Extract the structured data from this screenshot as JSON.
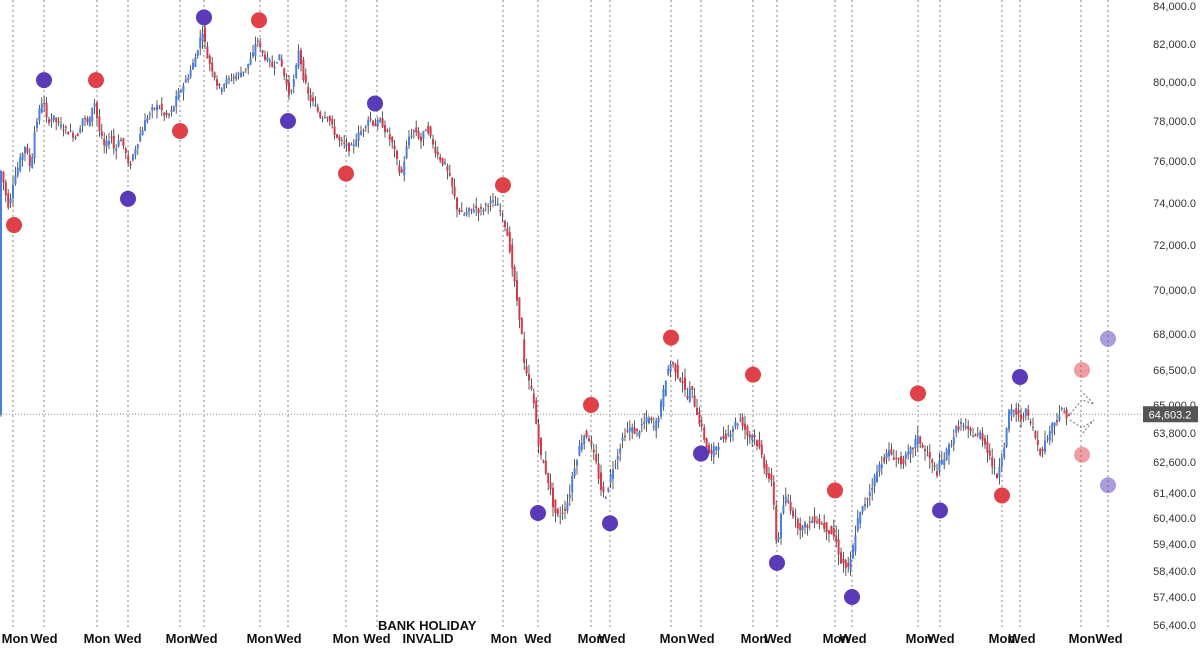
{
  "chart_data": {
    "type": "candlestick",
    "y_axis": {
      "position": "right",
      "ylim": [
        56400,
        84000
      ],
      "ticks": [
        84000,
        82000,
        80000,
        78000,
        76000,
        74000,
        72000,
        70000,
        68000,
        66500,
        65000,
        63800,
        62600,
        61400,
        60400,
        59400,
        58400,
        57400,
        56400
      ],
      "tick_labels": [
        "84,000.0",
        "82,000.0",
        "80,000.0",
        "78,000.0",
        "76,000.0",
        "74,000.0",
        "72,000.0",
        "70,000.0",
        "68,000.0",
        "66,500.0",
        "65,000.0",
        "63,800.0",
        "62,600.0",
        "61,400.0",
        "60,400.0",
        "59,400.0",
        "58,400.0",
        "57,400.0",
        "56,400.0"
      ]
    },
    "x_axis": {
      "labels": [
        "Mon",
        "Wed",
        "Mon",
        "Wed",
        "Mon",
        "Wed",
        "Mon",
        "Wed",
        "Mon",
        "Wed",
        "INVALID",
        "Mon",
        "Wed",
        "Mon",
        "Wed",
        "Mon",
        "Wed",
        "Mon",
        "Wed",
        "Mon",
        "Wed",
        "Mon",
        "Wed",
        "Mon",
        "Wed",
        "Mon",
        "Wed"
      ],
      "day_separators": true
    },
    "annotation": "BANK HOLIDAY",
    "current_price": 64603.2,
    "current_price_label": "64,603.2",
    "colors": {
      "up": "#4a7fe0",
      "down": "#d23c4a",
      "swing_high": "#e04048",
      "swing_low": "#5a3ab8"
    },
    "price_path": [
      [
        0,
        75800
      ],
      [
        3,
        75400
      ],
      [
        6,
        74600
      ],
      [
        10,
        73800
      ],
      [
        14,
        75000
      ],
      [
        20,
        75800
      ],
      [
        26,
        76800
      ],
      [
        32,
        75600
      ],
      [
        36,
        77600
      ],
      [
        40,
        78400
      ],
      [
        44,
        79200
      ],
      [
        48,
        78000
      ],
      [
        54,
        78200
      ],
      [
        60,
        77800
      ],
      [
        66,
        77600
      ],
      [
        72,
        77400
      ],
      [
        78,
        77200
      ],
      [
        84,
        78200
      ],
      [
        90,
        77800
      ],
      [
        95,
        79200
      ],
      [
        100,
        77600
      ],
      [
        106,
        76600
      ],
      [
        112,
        77400
      ],
      [
        116,
        76400
      ],
      [
        120,
        77200
      ],
      [
        126,
        76600
      ],
      [
        130,
        75600
      ],
      [
        136,
        76600
      ],
      [
        142,
        77400
      ],
      [
        148,
        78200
      ],
      [
        154,
        78600
      ],
      [
        160,
        78800
      ],
      [
        166,
        78200
      ],
      [
        172,
        78400
      ],
      [
        178,
        79200
      ],
      [
        184,
        79800
      ],
      [
        190,
        80400
      ],
      [
        196,
        81200
      ],
      [
        201,
        82200
      ],
      [
        204,
        82800
      ],
      [
        208,
        81400
      ],
      [
        214,
        80600
      ],
      [
        220,
        79600
      ],
      [
        226,
        80000
      ],
      [
        232,
        80200
      ],
      [
        240,
        80400
      ],
      [
        248,
        80800
      ],
      [
        254,
        81400
      ],
      [
        258,
        82400
      ],
      [
        262,
        81600
      ],
      [
        268,
        81200
      ],
      [
        274,
        80800
      ],
      [
        280,
        81400
      ],
      [
        285,
        80400
      ],
      [
        290,
        79400
      ],
      [
        296,
        80200
      ],
      [
        300,
        81800
      ],
      [
        304,
        80400
      ],
      [
        310,
        79200
      ],
      [
        316,
        78800
      ],
      [
        322,
        78200
      ],
      [
        328,
        78400
      ],
      [
        334,
        77600
      ],
      [
        340,
        77000
      ],
      [
        346,
        76800
      ],
      [
        352,
        76600
      ],
      [
        358,
        77200
      ],
      [
        364,
        77600
      ],
      [
        370,
        78200
      ],
      [
        376,
        77800
      ],
      [
        382,
        78000
      ],
      [
        388,
        77400
      ],
      [
        394,
        76800
      ],
      [
        398,
        76000
      ],
      [
        402,
        75200
      ],
      [
        406,
        76200
      ],
      [
        410,
        77200
      ],
      [
        416,
        77600
      ],
      [
        422,
        77000
      ],
      [
        428,
        77800
      ],
      [
        434,
        76800
      ],
      [
        440,
        76200
      ],
      [
        446,
        75800
      ],
      [
        452,
        75000
      ],
      [
        458,
        73800
      ],
      [
        464,
        73400
      ],
      [
        470,
        73600
      ],
      [
        476,
        73800
      ],
      [
        482,
        73600
      ],
      [
        488,
        74000
      ],
      [
        494,
        74000
      ],
      [
        500,
        73800
      ],
      [
        506,
        73000
      ],
      [
        510,
        72200
      ],
      [
        514,
        70800
      ],
      [
        518,
        69600
      ],
      [
        522,
        68400
      ],
      [
        526,
        66400
      ],
      [
        530,
        66000
      ],
      [
        534,
        65400
      ],
      [
        538,
        64000
      ],
      [
        542,
        62800
      ],
      [
        546,
        62400
      ],
      [
        550,
        61800
      ],
      [
        554,
        61000
      ],
      [
        558,
        60400
      ],
      [
        562,
        60600
      ],
      [
        566,
        60800
      ],
      [
        570,
        61200
      ],
      [
        574,
        62200
      ],
      [
        578,
        62800
      ],
      [
        582,
        63400
      ],
      [
        586,
        63800
      ],
      [
        590,
        63600
      ],
      [
        594,
        63000
      ],
      [
        598,
        62400
      ],
      [
        602,
        61600
      ],
      [
        606,
        61200
      ],
      [
        610,
        61800
      ],
      [
        614,
        62400
      ],
      [
        618,
        62800
      ],
      [
        622,
        63400
      ],
      [
        626,
        63800
      ],
      [
        632,
        64000
      ],
      [
        638,
        63800
      ],
      [
        644,
        64200
      ],
      [
        650,
        64400
      ],
      [
        656,
        64000
      ],
      [
        660,
        64600
      ],
      [
        664,
        65400
      ],
      [
        668,
        66400
      ],
      [
        672,
        66800
      ],
      [
        676,
        66600
      ],
      [
        680,
        66200
      ],
      [
        684,
        66000
      ],
      [
        688,
        65200
      ],
      [
        692,
        65800
      ],
      [
        696,
        65000
      ],
      [
        700,
        64400
      ],
      [
        704,
        63800
      ],
      [
        708,
        63200
      ],
      [
        712,
        62800
      ],
      [
        716,
        63200
      ],
      [
        720,
        63400
      ],
      [
        724,
        63600
      ],
      [
        730,
        63800
      ],
      [
        736,
        64200
      ],
      [
        742,
        64400
      ],
      [
        746,
        64000
      ],
      [
        750,
        63600
      ],
      [
        754,
        63800
      ],
      [
        758,
        63400
      ],
      [
        762,
        63000
      ],
      [
        766,
        62400
      ],
      [
        770,
        62000
      ],
      [
        774,
        61600
      ],
      [
        778,
        59200
      ],
      [
        782,
        60400
      ],
      [
        786,
        61200
      ],
      [
        790,
        61000
      ],
      [
        794,
        60600
      ],
      [
        798,
        60200
      ],
      [
        804,
        60000
      ],
      [
        810,
        60200
      ],
      [
        816,
        60400
      ],
      [
        822,
        60200
      ],
      [
        828,
        60000
      ],
      [
        834,
        59800
      ],
      [
        838,
        59400
      ],
      [
        842,
        58800
      ],
      [
        846,
        58600
      ],
      [
        850,
        58400
      ],
      [
        854,
        59200
      ],
      [
        858,
        60200
      ],
      [
        862,
        60600
      ],
      [
        866,
        61000
      ],
      [
        870,
        61400
      ],
      [
        874,
        61800
      ],
      [
        878,
        62200
      ],
      [
        882,
        62600
      ],
      [
        886,
        62800
      ],
      [
        890,
        63000
      ],
      [
        896,
        62800
      ],
      [
        902,
        62600
      ],
      [
        908,
        62800
      ],
      [
        914,
        63200
      ],
      [
        918,
        63600
      ],
      [
        922,
        63400
      ],
      [
        926,
        63000
      ],
      [
        930,
        62800
      ],
      [
        934,
        62400
      ],
      [
        938,
        62200
      ],
      [
        942,
        62600
      ],
      [
        946,
        62800
      ],
      [
        950,
        63200
      ],
      [
        954,
        63600
      ],
      [
        958,
        64000
      ],
      [
        962,
        64200
      ],
      [
        966,
        64000
      ],
      [
        970,
        63800
      ],
      [
        974,
        63800
      ],
      [
        978,
        63600
      ],
      [
        982,
        63800
      ],
      [
        986,
        63400
      ],
      [
        990,
        63000
      ],
      [
        994,
        62400
      ],
      [
        998,
        62000
      ],
      [
        1002,
        62800
      ],
      [
        1006,
        63400
      ],
      [
        1010,
        64600
      ],
      [
        1014,
        64800
      ],
      [
        1018,
        64600
      ],
      [
        1022,
        64400
      ],
      [
        1026,
        64800
      ],
      [
        1030,
        64400
      ],
      [
        1034,
        64000
      ],
      [
        1038,
        63400
      ],
      [
        1042,
        63000
      ],
      [
        1046,
        63400
      ],
      [
        1050,
        63800
      ],
      [
        1054,
        64200
      ],
      [
        1058,
        64400
      ],
      [
        1062,
        64800
      ],
      [
        1066,
        64600
      ],
      [
        1070,
        64603.2
      ]
    ],
    "swing_markers": [
      {
        "kind": "high",
        "x": 14,
        "y": 72950
      },
      {
        "kind": "low",
        "x": 44,
        "y": 80100
      },
      {
        "kind": "high",
        "x": 96,
        "y": 80100
      },
      {
        "kind": "low",
        "x": 128,
        "y": 74200
      },
      {
        "kind": "high",
        "x": 180,
        "y": 77500
      },
      {
        "kind": "low",
        "x": 204,
        "y": 83400
      },
      {
        "kind": "high",
        "x": 259,
        "y": 83250
      },
      {
        "kind": "low",
        "x": 288,
        "y": 78000
      },
      {
        "kind": "high",
        "x": 346,
        "y": 75400
      },
      {
        "kind": "low",
        "x": 375,
        "y": 78900
      },
      {
        "kind": "high",
        "x": 503,
        "y": 74850
      },
      {
        "kind": "low",
        "x": 538,
        "y": 60600
      },
      {
        "kind": "high",
        "x": 591,
        "y": 65000
      },
      {
        "kind": "low",
        "x": 610,
        "y": 60200
      },
      {
        "kind": "high",
        "x": 671,
        "y": 67850
      },
      {
        "kind": "low",
        "x": 701,
        "y": 62950
      },
      {
        "kind": "high",
        "x": 753,
        "y": 66300
      },
      {
        "kind": "low",
        "x": 777,
        "y": 58700
      },
      {
        "kind": "high",
        "x": 835,
        "y": 61500
      },
      {
        "kind": "low",
        "x": 852,
        "y": 57400
      },
      {
        "kind": "high",
        "x": 918,
        "y": 65500
      },
      {
        "kind": "low",
        "x": 940,
        "y": 60700
      },
      {
        "kind": "high",
        "x": 1002,
        "y": 61300
      },
      {
        "kind": "low",
        "x": 1020,
        "y": 66200
      },
      {
        "kind": "high-projected",
        "x": 1082,
        "y": 66500
      },
      {
        "kind": "high-projected",
        "x": 1082,
        "y": 62900
      },
      {
        "kind": "low-projected",
        "x": 1108,
        "y": 67800
      },
      {
        "kind": "low-projected",
        "x": 1108,
        "y": 61700
      }
    ]
  }
}
